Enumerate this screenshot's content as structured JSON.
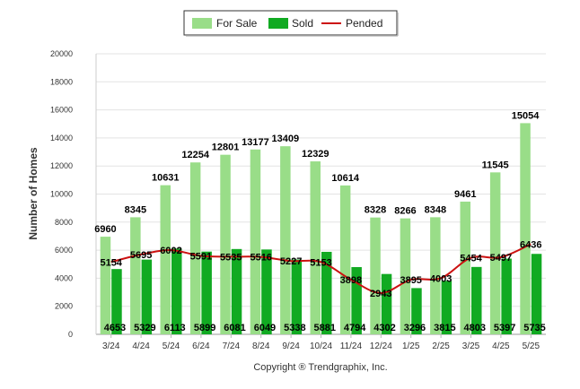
{
  "chart_data": {
    "type": "bar",
    "ylabel": "Number of Homes",
    "ylim": [
      0,
      20000
    ],
    "yticks": [
      0,
      2000,
      4000,
      6000,
      8000,
      10000,
      12000,
      14000,
      16000,
      18000,
      20000
    ],
    "categories": [
      "3/24",
      "4/24",
      "5/24",
      "6/24",
      "7/24",
      "8/24",
      "9/24",
      "10/24",
      "11/24",
      "12/24",
      "1/25",
      "2/25",
      "3/25",
      "4/25",
      "5/25"
    ],
    "series": [
      {
        "name": "For Sale",
        "kind": "bar",
        "color": "#99dd88",
        "values": [
          6960,
          8345,
          10631,
          12254,
          12801,
          13177,
          13409,
          12329,
          10614,
          8328,
          8266,
          8348,
          9461,
          11545,
          15054
        ]
      },
      {
        "name": "Sold",
        "kind": "bar",
        "color": "#11aa22",
        "values": [
          4653,
          5329,
          6113,
          5899,
          6081,
          6049,
          5338,
          5881,
          4794,
          4302,
          3296,
          3815,
          4803,
          5397,
          5735
        ]
      },
      {
        "name": "Pended",
        "kind": "line",
        "color": "#cc1111",
        "values": [
          5154,
          5695,
          6002,
          5591,
          5535,
          5516,
          5227,
          5153,
          3898,
          2943,
          3895,
          4003,
          5454,
          5497,
          6436
        ]
      }
    ],
    "legend": "top-center",
    "grid": true,
    "credit": "Copyright ® Trendgraphix, Inc."
  }
}
